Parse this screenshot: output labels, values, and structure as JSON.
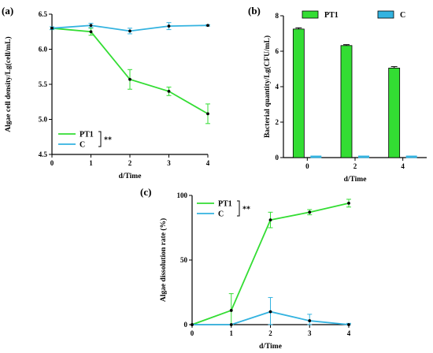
{
  "chart_data": [
    {
      "panel_label": "(a)",
      "type": "line",
      "xlabel": "d/Time",
      "ylabel": "Algae cell density/Lg(cell/mL)",
      "x": [
        0,
        1,
        2,
        3,
        4
      ],
      "xlim": [
        0,
        4
      ],
      "ylim": [
        4.5,
        6.5
      ],
      "yticks": [
        "4.5",
        "5.0",
        "5.5",
        "6.0",
        "6.5"
      ],
      "xticks": [
        "0",
        "1",
        "2",
        "3",
        "4"
      ],
      "series": [
        {
          "name": "PT1",
          "color": "#33dd33",
          "values": [
            6.3,
            6.25,
            5.57,
            5.4,
            5.08
          ],
          "errors": [
            0.02,
            0.05,
            0.14,
            0.06,
            0.14
          ]
        },
        {
          "name": "C",
          "color": "#33b3e0",
          "values": [
            6.3,
            6.34,
            6.26,
            6.33,
            6.34
          ],
          "errors": [
            0.02,
            0.03,
            0.04,
            0.05,
            0.01
          ]
        }
      ],
      "significance": "**",
      "legend_position": "bottom-left"
    },
    {
      "panel_label": "(b)",
      "type": "bar",
      "xlabel": "d/Time",
      "ylabel": "Bacterial quantity/Lg(CFU/mL)",
      "categories": [
        "0",
        "2",
        "4"
      ],
      "ylim": [
        0,
        8
      ],
      "yticks": [
        "0",
        "2",
        "4",
        "6",
        "8"
      ],
      "series": [
        {
          "name": "PT1",
          "color": "#33dd33",
          "values": [
            7.25,
            6.32,
            5.05
          ],
          "errors": [
            0.07,
            0.05,
            0.08
          ]
        },
        {
          "name": "C",
          "color": "#33b3e0",
          "values": [
            0,
            0,
            0
          ],
          "errors": [
            0,
            0,
            0
          ]
        }
      ],
      "legend_position": "top"
    },
    {
      "panel_label": "(c)",
      "type": "line",
      "xlabel": "d/Time",
      "ylabel": "Algae dissolution rate (%)",
      "x": [
        0,
        1,
        2,
        3,
        4
      ],
      "xlim": [
        0,
        4
      ],
      "ylim": [
        0,
        100
      ],
      "yticks": [
        "0",
        "50",
        "100"
      ],
      "xticks": [
        "0",
        "1",
        "2",
        "3",
        "4"
      ],
      "series": [
        {
          "name": "PT1",
          "color": "#33dd33",
          "values": [
            0,
            11,
            81,
            87,
            94
          ],
          "errors": [
            0,
            13,
            6,
            2,
            3
          ]
        },
        {
          "name": "C",
          "color": "#33b3e0",
          "values": [
            0,
            0,
            10,
            3,
            0
          ],
          "errors": [
            0,
            0,
            11,
            5,
            1
          ]
        }
      ],
      "significance": "**",
      "legend_position": "top-left"
    }
  ]
}
